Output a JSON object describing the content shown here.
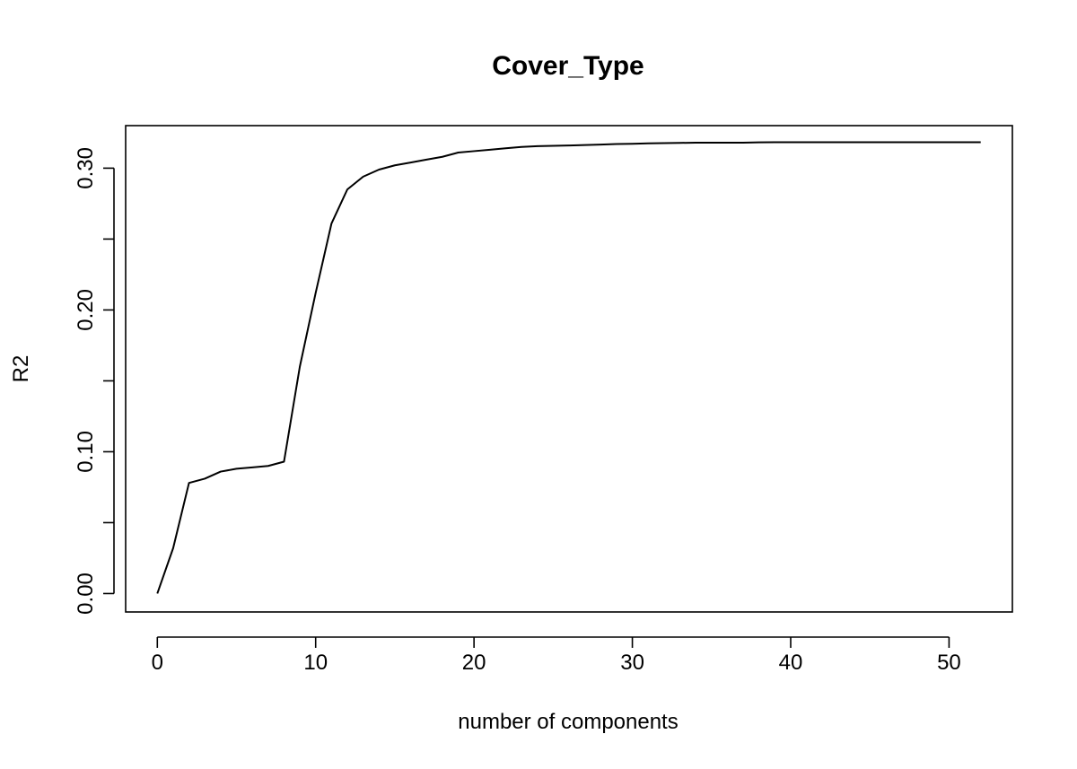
{
  "chart_data": {
    "type": "line",
    "title": "Cover_Type",
    "xlabel": "number of components",
    "ylabel": "R2",
    "xlim": [
      -2,
      54
    ],
    "ylim": [
      -0.013,
      0.33
    ],
    "xticks": [
      0,
      10,
      20,
      30,
      40,
      50
    ],
    "xtick_labels": [
      "0",
      "10",
      "20",
      "30",
      "40",
      "50"
    ],
    "yticks": [
      0.0,
      0.05,
      0.1,
      0.15,
      0.2,
      0.25,
      0.3
    ],
    "ytick_labels": [
      "0.00",
      "",
      "0.10",
      "",
      "0.20",
      "",
      "0.30"
    ],
    "grid": false,
    "legend": "none",
    "line_color": "#000000",
    "x": [
      0,
      1,
      2,
      3,
      4,
      5,
      6,
      7,
      8,
      9,
      10,
      11,
      12,
      13,
      14,
      15,
      16,
      17,
      18,
      19,
      20,
      21,
      22,
      23,
      24,
      25,
      26,
      27,
      28,
      29,
      30,
      31,
      32,
      33,
      34,
      35,
      36,
      37,
      38,
      39,
      40,
      41,
      42,
      43,
      44,
      45,
      46,
      47,
      48,
      49,
      50,
      51,
      52
    ],
    "y": [
      0.0,
      0.032,
      0.078,
      0.081,
      0.086,
      0.088,
      0.089,
      0.09,
      0.093,
      0.16,
      0.212,
      0.261,
      0.285,
      0.294,
      0.299,
      0.302,
      0.304,
      0.306,
      0.308,
      0.311,
      0.312,
      0.313,
      0.314,
      0.315,
      0.3155,
      0.3158,
      0.316,
      0.3163,
      0.3166,
      0.317,
      0.3172,
      0.3175,
      0.3177,
      0.3178,
      0.318,
      0.318,
      0.318,
      0.318,
      0.3182,
      0.3183,
      0.3183,
      0.3183,
      0.3183,
      0.3183,
      0.3183,
      0.3183,
      0.3183,
      0.3183,
      0.3183,
      0.3183,
      0.3183,
      0.3183,
      0.3183
    ]
  }
}
